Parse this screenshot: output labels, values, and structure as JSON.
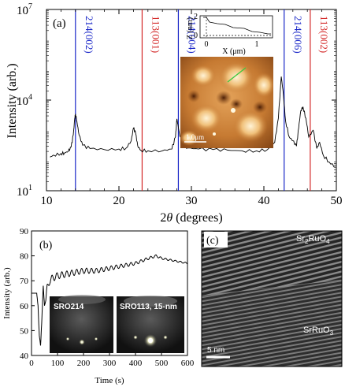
{
  "colors": {
    "blue": "#1a27c8",
    "red": "#d42a2a",
    "trace": "#000000"
  },
  "panel_a": {
    "label": "(a)",
    "ylabel": "Intensity (arb.)",
    "xlabel_theta": "θ",
    "xlabel_prefix": "2",
    "xlabel_suffix": " (degrees)",
    "x_ticks": [
      "10",
      "20",
      "30",
      "40",
      "50"
    ],
    "y_ticks": [
      {
        "base": "10",
        "exp": "1"
      },
      {
        "base": "10",
        "exp": "4"
      },
      {
        "base": "10",
        "exp": "7"
      }
    ],
    "peak_labels": [
      {
        "text": "214(002)",
        "color": "blue"
      },
      {
        "text": "113(001)",
        "color": "red"
      },
      {
        "text": "214(004)",
        "color": "blue"
      },
      {
        "text": "214(006)",
        "color": "blue"
      },
      {
        "text": "113(002)",
        "color": "red"
      }
    ],
    "inset_profile": {
      "ylabel": "Z (nm)",
      "xlabel": "X (μm)",
      "y_ticks": [
        "0",
        "2"
      ],
      "x_ticks": [
        "0",
        "1"
      ]
    },
    "afm_scale": "1.0μm"
  },
  "panel_b": {
    "label": "(b)",
    "ylabel": "Intensity (arb.)",
    "xlabel": "Time (s)",
    "x_ticks": [
      "0",
      "100",
      "200",
      "300",
      "400",
      "500",
      "600"
    ],
    "y_ticks": [
      "40",
      "50",
      "60",
      "70",
      "80",
      "90"
    ],
    "inset1": "SRO214",
    "inset2": "SRO113, 15-nm"
  },
  "panel_c": {
    "label": "(c)",
    "top_label_main": "Sr",
    "top_sub1": "2",
    "top_mid": "RuO",
    "top_sub2": "4",
    "bottom_label_main": "SrRuO",
    "bottom_sub": "3",
    "scale": "5 nm"
  },
  "chart_data": [
    {
      "type": "line",
      "title": "",
      "xlabel": "2θ (degrees)",
      "ylabel": "Intensity (arb.)",
      "xlim": [
        10,
        50
      ],
      "ylim": [
        10,
        10000000
      ],
      "yscale": "log",
      "reference_lines": [
        {
          "x": 14.0,
          "label": "214(002)",
          "color": "blue"
        },
        {
          "x": 23.2,
          "label": "113(001)",
          "color": "red"
        },
        {
          "x": 28.2,
          "label": "214(004)",
          "color": "blue"
        },
        {
          "x": 42.8,
          "label": "214(006)",
          "color": "blue"
        },
        {
          "x": 46.4,
          "label": "113(002)",
          "color": "red"
        }
      ],
      "series": [
        {
          "x": [
            10.5,
            11,
            12,
            12.5,
            13,
            13.4,
            13.7,
            13.9,
            14.0,
            14.2,
            14.5,
            15,
            16,
            18,
            20,
            21,
            21.7,
            22.0,
            22.3,
            22.6,
            23,
            24,
            26,
            27.3,
            27.8,
            28.0,
            28.3,
            28.7,
            29.5,
            31,
            33,
            35,
            37,
            39,
            40.5,
            41.5,
            42.0,
            42.4,
            42.7,
            43.0,
            43.5,
            44.0,
            44.5,
            44.8,
            45.1,
            45.4,
            45.8,
            46.2,
            46.8,
            47.3,
            47.7,
            48.2,
            49,
            49.9
          ],
          "y": [
            130,
            150,
            170,
            180,
            200,
            280,
            700,
            2500,
            3500,
            2000,
            700,
            320,
            250,
            230,
            240,
            260,
            450,
            1200,
            800,
            300,
            220,
            210,
            210,
            240,
            600,
            2400,
            900,
            350,
            260,
            240,
            230,
            220,
            210,
            210,
            230,
            400,
            2500,
            60000,
            15000,
            2000,
            600,
            450,
            300,
            1200,
            4500,
            6000,
            2500,
            600,
            1000,
            250,
            400,
            150,
            90,
            60
          ]
        }
      ]
    },
    {
      "type": "line",
      "title": "",
      "xlabel": "Time (s)",
      "ylabel": "Intensity (arb.)",
      "xlim": [
        0,
        600
      ],
      "ylim": [
        40,
        90
      ],
      "series": [
        {
          "x": [
            0,
            10,
            20,
            25,
            30,
            35,
            40,
            45,
            50,
            55,
            60,
            70,
            80,
            100,
            150,
            200,
            250,
            300,
            350,
            400,
            450,
            480,
            500,
            550,
            600
          ],
          "y": [
            65,
            65,
            65,
            60,
            48,
            44,
            55,
            68,
            60,
            62,
            67,
            70,
            71,
            72,
            73,
            74,
            74,
            75,
            76,
            77,
            79,
            80,
            79,
            78,
            77
          ]
        }
      ]
    }
  ]
}
